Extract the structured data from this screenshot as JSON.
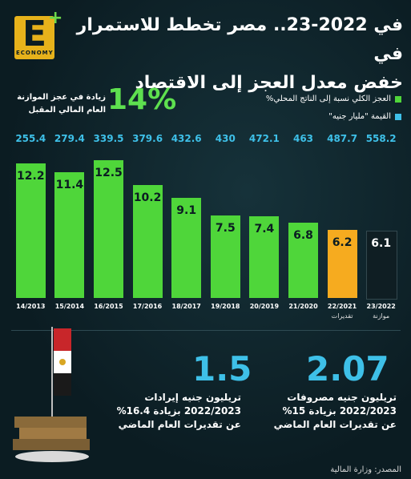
{
  "header": {
    "title_line1": "في 2022-23.. مصر تخطط للاستمرار في",
    "title_line2": "خفض معدل العجز إلى الاقتصاد",
    "logo_text": "ECONOMY"
  },
  "legend": {
    "deficit_label": "العجز الكلي نسبة إلى الناتج المحلي%",
    "value_label": "القيمة \"مليار جنيه\""
  },
  "highlight": {
    "percent": "14%",
    "line1": "زيادة في عجز الموازنة",
    "line2": "العام المالي المقبل"
  },
  "colors": {
    "green": "#4fd63a",
    "orange": "#f6ab1f",
    "dark": "#0f1e23",
    "cyan": "#3ec0e8"
  },
  "chart_data": {
    "type": "bar",
    "categories": [
      "23/2022",
      "22/2021",
      "21/2020",
      "20/2019",
      "19/2018",
      "18/2017",
      "17/2016",
      "16/2015",
      "15/2014",
      "14/2013"
    ],
    "sublabels": [
      "موازنة",
      "تقديرات",
      "",
      "",
      "",
      "",
      "",
      "",
      "",
      ""
    ],
    "series": [
      {
        "name": "العجز الكلي نسبة إلى الناتج المحلي%",
        "values": [
          6.1,
          6.2,
          6.8,
          7.4,
          7.5,
          9.1,
          10.2,
          12.5,
          11.4,
          12.2
        ]
      },
      {
        "name": "القيمة \"مليار جنيه\"",
        "values": [
          558.2,
          487.7,
          463,
          472.1,
          430,
          432.6,
          379.6,
          339.5,
          279.4,
          255.4
        ]
      }
    ],
    "bar_kinds": [
      "dark",
      "orange",
      "green",
      "green",
      "green",
      "green",
      "green",
      "green",
      "green",
      "green"
    ],
    "ylim": [
      0,
      14
    ]
  },
  "stats": [
    {
      "number": "2.07",
      "line1": "تريليون جنيه مصروفات",
      "line2": "2022/2023 بزيادة 15%",
      "line3": "عن تقديرات العام الماضي"
    },
    {
      "number": "1.5",
      "line1": "تريليون جنيه إيرادات",
      "line2": "2022/2023 بزيادة 16.4%",
      "line3": "عن تقديرات العام الماضي"
    }
  ],
  "source": "المصدر: وزارة المالية"
}
